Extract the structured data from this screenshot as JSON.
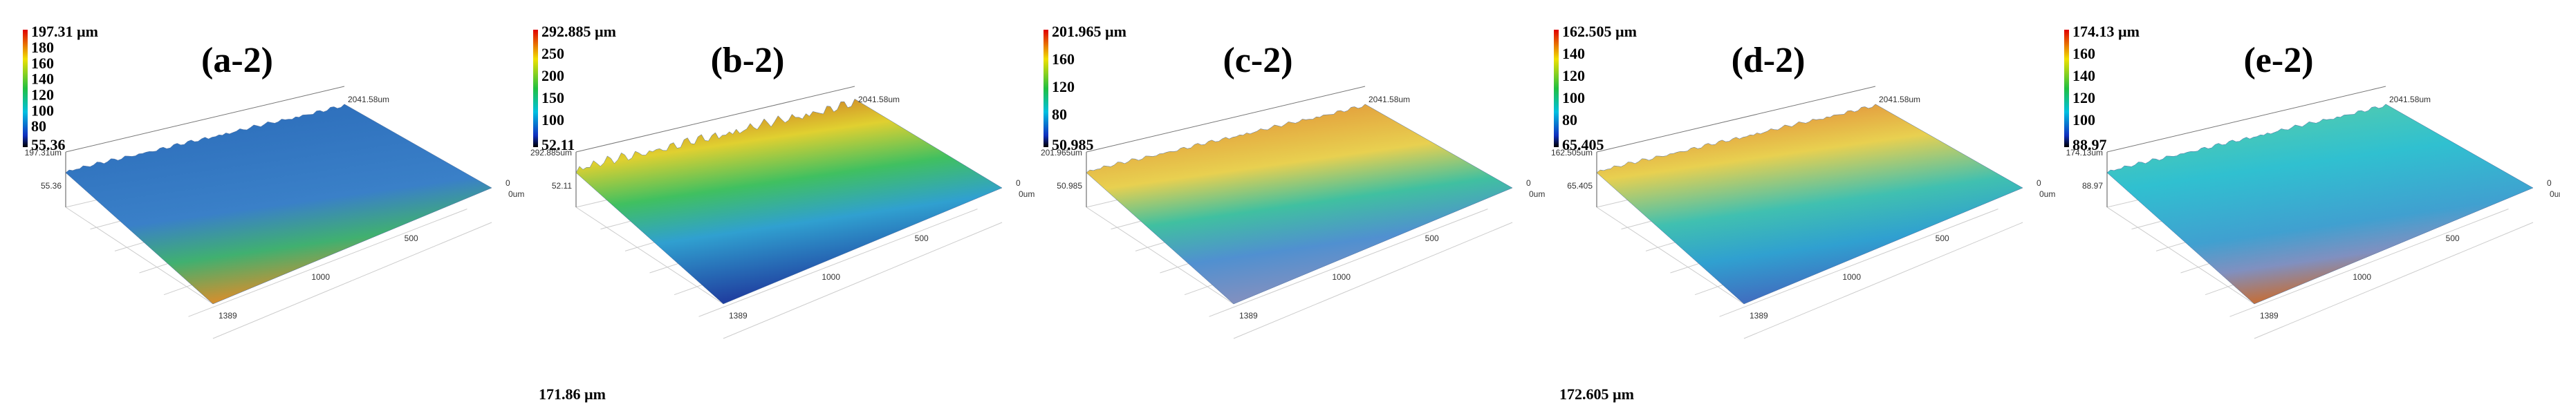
{
  "panels": [
    {
      "label": "(a-2)",
      "colorbar": {
        "max": "197.31 µm",
        "ticks": [
          "180",
          "160",
          "140",
          "120",
          "100",
          "80"
        ],
        "min": "55.36"
      },
      "surface": {
        "z_max": "197.31um",
        "z_min": "55.36",
        "y_extent": "2041.58um",
        "y_zero": "0",
        "x_zero": "0um",
        "x_ticks": [
          "500",
          "1000",
          "1389"
        ]
      }
    },
    {
      "label": "(b-2)",
      "colorbar": {
        "max": "292.885 µm",
        "ticks": [
          "250",
          "200",
          "150",
          "100"
        ],
        "min": "52.11"
      },
      "surface": {
        "z_max": "292.885um",
        "z_min": "52.11",
        "y_extent": "2041.58um",
        "y_zero": "0",
        "x_zero": "0um",
        "x_ticks": [
          "500",
          "1000",
          "1389"
        ]
      },
      "footer": "171.86 µm"
    },
    {
      "label": "(c-2)",
      "colorbar": {
        "max": "201.965 µm",
        "ticks": [
          "160",
          "120",
          "80"
        ],
        "min": "50.985"
      },
      "surface": {
        "z_max": "201.965um",
        "z_min": "50.985",
        "y_extent": "2041.58um",
        "y_zero": "0",
        "x_zero": "0um",
        "x_ticks": [
          "500",
          "1000",
          "1389"
        ]
      }
    },
    {
      "label": "(d-2)",
      "colorbar": {
        "max": "162.505 µm",
        "ticks": [
          "140",
          "120",
          "100",
          "80"
        ],
        "min": "65.405"
      },
      "surface": {
        "z_max": "162.505um",
        "z_min": "65.405",
        "y_extent": "2041.58um",
        "y_zero": "0",
        "x_zero": "0um",
        "x_ticks": [
          "500",
          "1000",
          "1389"
        ]
      },
      "footer": "172.605 µm"
    },
    {
      "label": "(e-2)",
      "colorbar": {
        "max": "174.13 µm",
        "ticks": [
          "160",
          "140",
          "120",
          "100"
        ],
        "min": "88.97"
      },
      "surface": {
        "z_max": "174.13um",
        "z_min": "88.97",
        "y_extent": "2041.58um",
        "y_zero": "0",
        "x_zero": "0um",
        "x_ticks": [
          "500",
          "1000",
          "1389"
        ]
      }
    }
  ]
}
